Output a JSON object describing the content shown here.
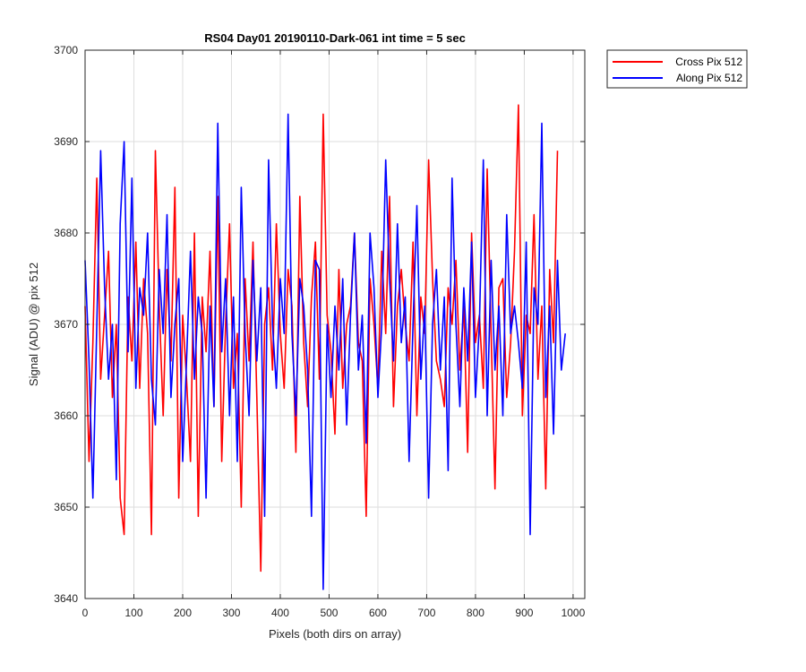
{
  "chart_data": {
    "type": "line",
    "title": "RS04 Day01 20190110-Dark-061 int time = 5 sec",
    "xlabel": "Pixels (both dirs on array)",
    "ylabel": "Signal (ADU) @ pix 512",
    "xlim": [
      0,
      1024
    ],
    "ylim": [
      3640,
      3700
    ],
    "xticks": [
      0,
      100,
      200,
      300,
      400,
      500,
      600,
      700,
      800,
      900,
      1000
    ],
    "yticks": [
      3640,
      3650,
      3660,
      3670,
      3680,
      3690,
      3700
    ],
    "grid": true,
    "legend_placement": "outside-top-right",
    "x_step": 8,
    "series": [
      {
        "name": "Cross Pix 512",
        "color": "#ff0000",
        "values": [
          3672,
          3655,
          3668,
          3686,
          3664,
          3671,
          3678,
          3662,
          3670,
          3651,
          3647,
          3673,
          3666,
          3679,
          3663,
          3675,
          3669,
          3647,
          3689,
          3672,
          3660,
          3676,
          3666,
          3685,
          3651,
          3671,
          3664,
          3655,
          3680,
          3649,
          3673,
          3667,
          3678,
          3661,
          3684,
          3655,
          3670,
          3681,
          3663,
          3669,
          3650,
          3675,
          3666,
          3679,
          3662,
          3643,
          3670,
          3674,
          3665,
          3681,
          3669,
          3663,
          3676,
          3672,
          3656,
          3684,
          3668,
          3661,
          3673,
          3679,
          3664,
          3693,
          3671,
          3667,
          3658,
          3676,
          3663,
          3670,
          3672,
          3680,
          3668,
          3666,
          3649,
          3675,
          3670,
          3663,
          3678,
          3669,
          3684,
          3661,
          3672,
          3676,
          3670,
          3666,
          3679,
          3660,
          3673,
          3669,
          3688,
          3675,
          3666,
          3664,
          3661,
          3674,
          3670,
          3677,
          3665,
          3672,
          3656,
          3680,
          3668,
          3671,
          3663,
          3687,
          3669,
          3652,
          3674,
          3675,
          3662,
          3668,
          3678,
          3694,
          3660,
          3671,
          3669,
          3682,
          3664,
          3672,
          3652,
          3676,
          3668,
          3689
        ]
      },
      {
        "name": "Along Pix 512",
        "color": "#0000ff",
        "values": [
          3677,
          3666,
          3651,
          3670,
          3689,
          3674,
          3664,
          3670,
          3653,
          3681,
          3690,
          3667,
          3686,
          3663,
          3674,
          3671,
          3680,
          3664,
          3659,
          3676,
          3669,
          3682,
          3662,
          3670,
          3675,
          3655,
          3666,
          3678,
          3664,
          3673,
          3669,
          3651,
          3672,
          3661,
          3692,
          3667,
          3675,
          3660,
          3673,
          3655,
          3685,
          3669,
          3660,
          3677,
          3666,
          3674,
          3649,
          3688,
          3670,
          3663,
          3675,
          3669,
          3693,
          3669,
          3660,
          3675,
          3672,
          3665,
          3649,
          3677,
          3676,
          3641,
          3670,
          3662,
          3672,
          3665,
          3675,
          3659,
          3671,
          3680,
          3665,
          3671,
          3657,
          3680,
          3674,
          3662,
          3670,
          3688,
          3675,
          3666,
          3681,
          3668,
          3673,
          3655,
          3670,
          3683,
          3664,
          3672,
          3651,
          3670,
          3676,
          3665,
          3673,
          3654,
          3686,
          3670,
          3661,
          3674,
          3666,
          3679,
          3662,
          3670,
          3688,
          3660,
          3677,
          3665,
          3672,
          3660,
          3682,
          3669,
          3672,
          3668,
          3663,
          3679,
          3647,
          3674,
          3670,
          3692,
          3662,
          3672,
          3658,
          3677,
          3665,
          3669
        ]
      }
    ]
  }
}
